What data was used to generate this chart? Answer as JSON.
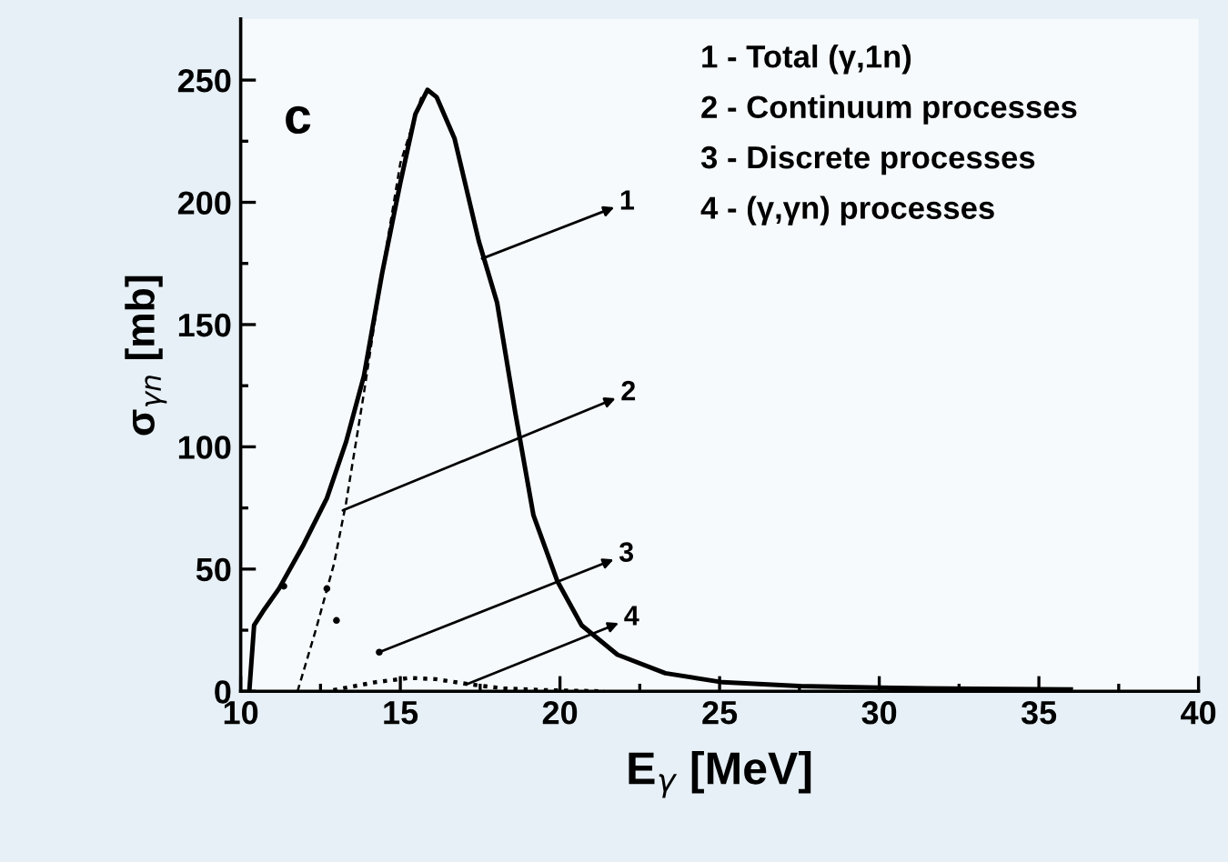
{
  "chart_data": {
    "type": "line",
    "xlabel": "E$_{γ}$ [MeV]",
    "ylabel": "σ$_{γn}$ [mb]",
    "xlim": [
      10,
      40
    ],
    "ylim": [
      0,
      275
    ],
    "xticks": [
      10,
      15,
      20,
      25,
      30,
      35,
      40
    ],
    "yticks": [
      0,
      50,
      100,
      150,
      200,
      250
    ],
    "grid": false,
    "legend": false,
    "marker": "none",
    "series": [
      {
        "color": "#000000",
        "line_style": "solid",
        "x": [
          10.27,
          10.42,
          10.74,
          11.2,
          11.97,
          12.7,
          13.3,
          13.86,
          14.43,
          15.0,
          15.47,
          15.85,
          16.14,
          16.7,
          17.46,
          18.03,
          18.6,
          19.17,
          19.92,
          20.68,
          21.8,
          23.3,
          25.1,
          27.5,
          30,
          33,
          36
        ],
        "values": [
          0,
          27,
          33.5,
          42,
          60,
          79,
          102,
          129,
          171,
          208,
          236,
          246,
          243,
          226,
          184,
          159,
          114,
          72,
          45,
          27,
          15,
          7.4,
          3.7,
          2.2,
          1.5,
          1,
          0.8
        ]
      },
      {
        "color": "#000000",
        "line_style": "dashed",
        "x": [
          11.78,
          12.35,
          12.92,
          13.3,
          13.86,
          14.43,
          15.0,
          15.66
        ],
        "values": [
          0,
          25,
          52,
          77,
          122,
          171,
          216,
          243
        ]
      },
      {
        "color": "#000000",
        "type": "scatter",
        "x": [
          11.35,
          12.7,
          13.0,
          14.34
        ],
        "values": [
          43,
          42,
          29,
          16
        ]
      },
      {
        "color": "#000000",
        "line_style": "dotted",
        "x": [
          12.9,
          14.2,
          15.3,
          16.1,
          17.1,
          18.2,
          19.5,
          21.4
        ],
        "values": [
          0.5,
          3.7,
          5.5,
          5,
          3,
          1.2,
          0.5,
          0
        ]
      }
    ],
    "annotations": [
      "c",
      "1 - Total (γ,1n)",
      "2 - Continuum processes",
      "3 - Discrete processes",
      "4 - (γ,γn) processes",
      {
        "text": "1",
        "x": 17.56,
        "y": 177
      },
      {
        "text": "2",
        "x": 13.2,
        "y": 74
      },
      {
        "text": "3",
        "x": 14.34,
        "y": 16
      },
      {
        "text": "4",
        "x": 17.1,
        "y": 3
      }
    ]
  }
}
